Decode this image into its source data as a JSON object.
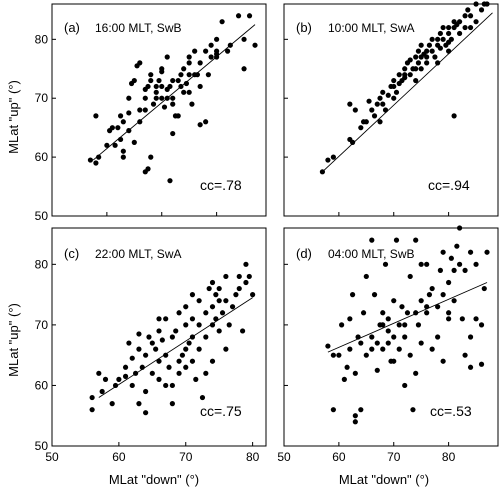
{
  "figure": {
    "ylabel": "MLat \"up\" (°)",
    "xlabel_left": "MLat  \"down\" (°)",
    "xlabel_right": "MLat  \"down\" (°)",
    "x_ticks": [
      "50",
      "60",
      "70",
      "80"
    ],
    "y_ticks": [
      "50",
      "60",
      "70",
      "80"
    ],
    "marker_color": "#000000"
  },
  "chart_data": [
    {
      "type": "scatter",
      "id": "a",
      "label": "(a)",
      "subtitle": "16:00 MLT, SwB",
      "cc": "cc=.78",
      "xlim": [
        50,
        89
      ],
      "ylim": [
        50,
        86
      ],
      "fit": {
        "x": [
          57.5,
          87
        ],
        "y": [
          59.5,
          82.5
        ]
      },
      "points": [
        [
          57,
          59.5
        ],
        [
          58,
          59
        ],
        [
          58.5,
          60
        ],
        [
          58,
          67
        ],
        [
          60,
          62
        ],
        [
          60.5,
          64.5
        ],
        [
          61,
          65
        ],
        [
          61.5,
          62
        ],
        [
          62,
          65
        ],
        [
          62.5,
          63
        ],
        [
          62.5,
          67
        ],
        [
          63,
          60
        ],
        [
          63,
          61
        ],
        [
          63,
          66
        ],
        [
          64,
          64.5
        ],
        [
          64,
          67.5
        ],
        [
          64,
          70
        ],
        [
          64.5,
          72.5
        ],
        [
          65,
          62.5
        ],
        [
          65,
          73
        ],
        [
          65.5,
          75.5
        ],
        [
          66,
          76
        ],
        [
          66,
          66
        ],
        [
          67,
          68
        ],
        [
          67,
          70
        ],
        [
          67,
          57.5
        ],
        [
          67.5,
          58
        ],
        [
          67,
          71.5
        ],
        [
          67.5,
          72
        ],
        [
          68,
          74
        ],
        [
          68,
          73
        ],
        [
          68.5,
          69
        ],
        [
          69,
          71
        ],
        [
          69,
          72
        ],
        [
          69,
          70
        ],
        [
          69.5,
          73
        ],
        [
          70,
          70
        ],
        [
          70,
          72
        ],
        [
          70,
          75
        ],
        [
          70,
          74.5
        ],
        [
          70.5,
          68.5
        ],
        [
          71,
          71.5
        ],
        [
          71,
          70
        ],
        [
          71,
          77
        ],
        [
          71.5,
          72
        ],
        [
          71.5,
          56
        ],
        [
          72,
          70
        ],
        [
          72,
          69
        ],
        [
          72,
          73
        ],
        [
          72,
          64
        ],
        [
          72.5,
          67
        ],
        [
          73,
          67
        ],
        [
          73,
          73
        ],
        [
          73.5,
          74
        ],
        [
          73.5,
          72
        ],
        [
          74,
          75
        ],
        [
          74.5,
          72.5
        ],
        [
          75,
          74
        ],
        [
          75,
          76
        ],
        [
          75,
          77
        ],
        [
          75,
          71
        ],
        [
          75.5,
          69
        ],
        [
          76,
          74
        ],
        [
          76,
          78
        ],
        [
          76.5,
          74
        ],
        [
          77,
          65.5
        ],
        [
          77,
          72
        ],
        [
          77,
          76
        ],
        [
          78,
          78
        ],
        [
          78,
          66
        ],
        [
          78.5,
          74
        ],
        [
          79,
          79
        ],
        [
          80,
          77
        ],
        [
          80,
          78
        ],
        [
          80,
          80
        ],
        [
          80,
          77.5
        ],
        [
          81,
          83
        ],
        [
          82,
          78
        ],
        [
          82.5,
          79
        ],
        [
          84,
          84
        ],
        [
          85,
          80
        ],
        [
          85,
          75
        ],
        [
          86,
          84
        ],
        [
          87,
          79
        ],
        [
          68,
          60
        ],
        [
          66,
          68
        ],
        [
          74,
          71
        ],
        [
          79,
          77
        ]
      ]
    },
    {
      "type": "scatter",
      "id": "b",
      "label": "(b)",
      "subtitle": "10:00 MLT, SwA",
      "cc": "cc=.94",
      "xlim": [
        50,
        89
      ],
      "ylim": [
        50,
        86
      ],
      "fit": {
        "x": [
          57,
          88
        ],
        "y": [
          57.5,
          84.5
        ]
      },
      "points": [
        [
          57,
          57.5
        ],
        [
          58,
          59.5
        ],
        [
          59,
          60
        ],
        [
          62,
          63
        ],
        [
          62.5,
          62.5
        ],
        [
          63,
          68
        ],
        [
          64,
          65
        ],
        [
          64.5,
          66
        ],
        [
          65,
          66
        ],
        [
          65.5,
          69.5
        ],
        [
          66,
          68
        ],
        [
          66.5,
          67
        ],
        [
          67,
          69
        ],
        [
          67.5,
          70
        ],
        [
          68,
          69
        ],
        [
          68,
          71
        ],
        [
          68.5,
          68
        ],
        [
          69,
          70.5
        ],
        [
          69.5,
          72
        ],
        [
          70,
          72
        ],
        [
          70,
          73
        ],
        [
          70.5,
          71
        ],
        [
          71,
          72.5
        ],
        [
          71,
          74
        ],
        [
          71.5,
          73
        ],
        [
          72,
          74
        ],
        [
          72,
          75
        ],
        [
          72.5,
          76
        ],
        [
          73,
          74
        ],
        [
          73,
          76.5
        ],
        [
          73.5,
          75
        ],
        [
          74,
          75
        ],
        [
          74,
          77
        ],
        [
          74.5,
          76
        ],
        [
          74.5,
          78
        ],
        [
          75,
          75
        ],
        [
          75,
          77
        ],
        [
          75,
          79
        ],
        [
          75.5,
          77.5
        ],
        [
          76,
          76
        ],
        [
          76,
          78
        ],
        [
          76.5,
          79
        ],
        [
          77,
          78
        ],
        [
          77,
          80
        ],
        [
          77.5,
          77
        ],
        [
          78,
          79
        ],
        [
          78,
          80
        ],
        [
          78.5,
          78.5
        ],
        [
          78.5,
          81
        ],
        [
          79,
          80
        ],
        [
          79,
          82
        ],
        [
          79.5,
          79
        ],
        [
          80,
          79.5
        ],
        [
          80,
          81
        ],
        [
          80,
          82
        ],
        [
          80.5,
          80
        ],
        [
          81,
          82
        ],
        [
          81,
          83
        ],
        [
          81,
          67
        ],
        [
          81.5,
          82.5
        ],
        [
          82,
          81
        ],
        [
          82,
          83
        ],
        [
          83,
          82
        ],
        [
          83,
          84
        ],
        [
          83.5,
          85
        ],
        [
          84,
          84
        ],
        [
          84,
          82
        ],
        [
          85,
          83
        ],
        [
          85,
          86
        ],
        [
          86,
          85
        ],
        [
          86.5,
          86
        ],
        [
          87,
          86
        ],
        [
          62,
          69
        ],
        [
          67.5,
          66
        ],
        [
          70,
          70
        ],
        [
          72,
          73.5
        ],
        [
          74,
          73
        ],
        [
          76,
          77
        ],
        [
          78,
          76
        ],
        [
          80,
          78
        ]
      ]
    },
    {
      "type": "scatter",
      "id": "c",
      "label": "(c)",
      "subtitle": "22:00 MLT, SwA",
      "cc": "cc=.75",
      "xlim": [
        50,
        82
      ],
      "ylim": [
        50,
        86
      ],
      "fit": {
        "x": [
          57,
          80
        ],
        "y": [
          58,
          74.5
        ]
      },
      "points": [
        [
          56,
          56
        ],
        [
          56,
          58
        ],
        [
          57,
          62
        ],
        [
          57.5,
          59
        ],
        [
          58,
          61
        ],
        [
          59,
          57
        ],
        [
          59.5,
          60
        ],
        [
          60,
          61
        ],
        [
          61,
          61.5
        ],
        [
          61,
          63
        ],
        [
          61.5,
          67
        ],
        [
          62,
          60
        ],
        [
          62,
          64.5
        ],
        [
          62.5,
          62
        ],
        [
          63,
          57
        ],
        [
          63,
          66
        ],
        [
          63,
          68.5
        ],
        [
          63.5,
          63
        ],
        [
          64,
          55.5
        ],
        [
          64,
          59
        ],
        [
          64,
          65
        ],
        [
          64.5,
          68
        ],
        [
          65,
          62
        ],
        [
          65,
          67
        ],
        [
          65.5,
          66
        ],
        [
          66,
          61
        ],
        [
          66,
          64
        ],
        [
          66,
          69
        ],
        [
          66.5,
          67.5
        ],
        [
          67,
          60
        ],
        [
          67,
          65
        ],
        [
          67,
          71
        ],
        [
          67.5,
          63
        ],
        [
          68,
          68
        ],
        [
          68,
          57
        ],
        [
          68.5,
          69
        ],
        [
          69,
          62
        ],
        [
          69,
          64
        ],
        [
          69,
          72
        ],
        [
          69.5,
          65
        ],
        [
          70,
          70
        ],
        [
          70,
          73
        ],
        [
          70,
          66
        ],
        [
          70,
          63
        ],
        [
          70.5,
          67
        ],
        [
          71,
          68
        ],
        [
          71,
          71
        ],
        [
          71,
          75
        ],
        [
          71.5,
          61
        ],
        [
          72,
          66
        ],
        [
          72,
          70
        ],
        [
          72,
          74
        ],
        [
          72.5,
          58
        ],
        [
          73,
          62
        ],
        [
          73,
          68
        ],
        [
          73,
          72
        ],
        [
          73.5,
          76
        ],
        [
          74,
          64
        ],
        [
          74,
          70
        ],
        [
          74,
          73
        ],
        [
          74.5,
          71
        ],
        [
          74.5,
          75
        ],
        [
          75,
          74
        ],
        [
          75,
          69
        ],
        [
          75,
          76
        ],
        [
          75.5,
          72
        ],
        [
          76,
          74
        ],
        [
          76,
          66
        ],
        [
          76,
          78
        ],
        [
          76.5,
          70
        ],
        [
          77,
          73
        ],
        [
          77.5,
          75
        ],
        [
          78,
          78
        ],
        [
          78,
          76
        ],
        [
          78.5,
          69
        ],
        [
          79,
          77
        ],
        [
          79,
          80
        ],
        [
          79.5,
          78
        ],
        [
          80,
          75
        ],
        [
          68,
          60
        ],
        [
          71,
          64
        ],
        [
          74,
          77
        ],
        [
          66,
          71
        ]
      ]
    },
    {
      "type": "scatter",
      "id": "d",
      "label": "(d)",
      "subtitle": "04:00 MLT, SwB",
      "cc": "cc=.53",
      "xlim": [
        50,
        89
      ],
      "ylim": [
        50,
        86
      ],
      "fit": {
        "x": [
          58,
          87
        ],
        "y": [
          65.5,
          77
        ]
      },
      "points": [
        [
          58,
          66.5
        ],
        [
          59,
          56
        ],
        [
          59,
          65
        ],
        [
          60,
          65
        ],
        [
          60.5,
          70
        ],
        [
          61,
          61
        ],
        [
          61.5,
          63
        ],
        [
          62,
          66
        ],
        [
          62,
          71
        ],
        [
          62.5,
          75
        ],
        [
          63,
          54
        ],
        [
          63,
          55
        ],
        [
          63,
          62
        ],
        [
          63.5,
          68
        ],
        [
          64,
          56
        ],
        [
          64,
          67
        ],
        [
          64.5,
          72
        ],
        [
          65,
          65
        ],
        [
          65,
          78
        ],
        [
          66,
          66
        ],
        [
          66,
          68
        ],
        [
          66.5,
          75
        ],
        [
          67,
          62.5
        ],
        [
          67,
          67
        ],
        [
          67.5,
          70
        ],
        [
          68,
          66
        ],
        [
          68,
          72
        ],
        [
          68.5,
          80
        ],
        [
          69,
          67
        ],
        [
          69,
          71
        ],
        [
          69,
          69
        ],
        [
          69.5,
          64
        ],
        [
          70,
          64
        ],
        [
          70,
          68
        ],
        [
          70,
          74
        ],
        [
          70.5,
          84
        ],
        [
          71,
          70
        ],
        [
          71,
          66
        ],
        [
          71.5,
          73
        ],
        [
          72,
          68
        ],
        [
          72,
          70
        ],
        [
          72,
          60
        ],
        [
          72.5,
          72
        ],
        [
          73,
          65
        ],
        [
          73,
          78
        ],
        [
          73.5,
          56
        ],
        [
          74,
          84
        ],
        [
          74,
          72
        ],
        [
          74,
          62
        ],
        [
          74.5,
          70
        ],
        [
          75,
          74
        ],
        [
          75,
          67
        ],
        [
          75,
          80
        ],
        [
          76,
          72
        ],
        [
          76,
          73
        ],
        [
          76.5,
          75
        ],
        [
          77,
          76
        ],
        [
          77,
          66
        ],
        [
          78,
          68
        ],
        [
          78,
          73
        ],
        [
          78.5,
          79
        ],
        [
          79,
          75
        ],
        [
          79,
          64
        ],
        [
          80,
          71
        ],
        [
          80,
          72
        ],
        [
          80,
          77
        ],
        [
          80.5,
          81
        ],
        [
          81,
          74
        ],
        [
          81,
          79
        ],
        [
          81.5,
          83
        ],
        [
          82,
          86
        ],
        [
          82,
          80
        ],
        [
          82.5,
          71
        ],
        [
          83,
          65
        ],
        [
          83,
          79
        ],
        [
          84,
          68
        ],
        [
          84,
          63
        ],
        [
          84,
          82
        ],
        [
          85,
          71
        ],
        [
          85,
          80
        ],
        [
          86,
          63.5
        ],
        [
          86,
          70
        ],
        [
          86.5,
          76
        ],
        [
          87,
          82
        ],
        [
          66,
          84
        ],
        [
          68,
          70
        ],
        [
          76,
          80
        ],
        [
          79,
          82
        ]
      ]
    }
  ]
}
